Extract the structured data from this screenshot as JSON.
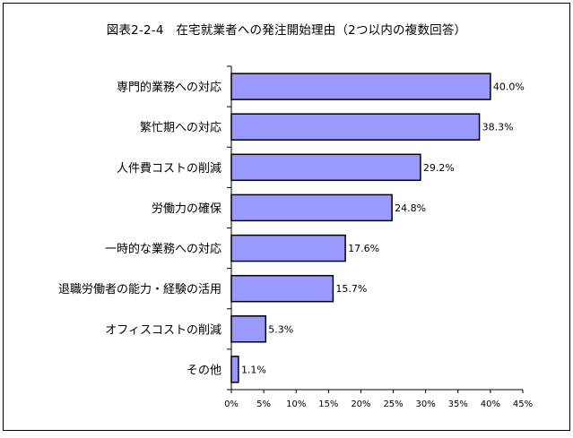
{
  "chart_data": {
    "type": "bar",
    "orientation": "horizontal",
    "title": "図表2-2-4　在宅就業者への発注開始理由（2つ以内の複数回答）",
    "categories": [
      "専門的業務への対応",
      "繁忙期への対応",
      "人件費コストの削減",
      "労働力の確保",
      "一時的な業務への対応",
      "退職労働者の能力・経験の活用",
      "オフィスコストの削減",
      "その他"
    ],
    "values": [
      40.0,
      38.3,
      29.2,
      24.8,
      17.6,
      15.7,
      5.3,
      1.1
    ],
    "value_labels": [
      "40.0%",
      "38.3%",
      "29.2%",
      "24.8%",
      "17.6%",
      "15.7%",
      "5.3%",
      "1.1%"
    ],
    "xlim": [
      0,
      45
    ],
    "xticks": [
      0,
      5,
      10,
      15,
      20,
      25,
      30,
      35,
      40,
      45
    ],
    "xtick_labels": [
      "0%",
      "5%",
      "10%",
      "15%",
      "20%",
      "25%",
      "30%",
      "35%",
      "40%",
      "45%"
    ],
    "grid": false,
    "bar_color": "#9999ff",
    "bar_edge_color": "#000000"
  }
}
